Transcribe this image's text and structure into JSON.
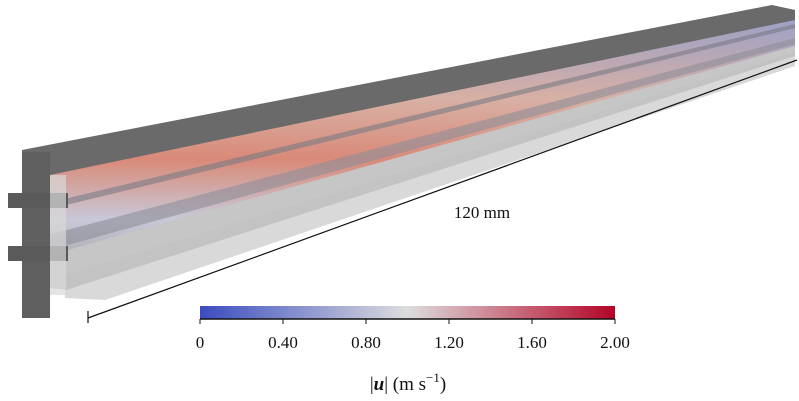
{
  "figure": {
    "dimension_label": "120 mm",
    "colorbar": {
      "lim": [
        0,
        2
      ],
      "colors": [
        "#3b4cc0",
        "#dddddd",
        "#b40426"
      ],
      "ticks": [
        0,
        {
          "value": 0.4,
          "label": "0.40"
        },
        {
          "value": 0.8,
          "label": "0.80"
        },
        {
          "value": 1.2,
          "label": "1.20"
        },
        {
          "value": 1.6,
          "label": "1.60"
        },
        {
          "value": 2,
          "label": "2.00"
        }
      ],
      "label": {
        "open": "|",
        "symbol": "u",
        "middle": "| (m s",
        "exponent": "−1",
        "close": ")"
      }
    }
  }
}
